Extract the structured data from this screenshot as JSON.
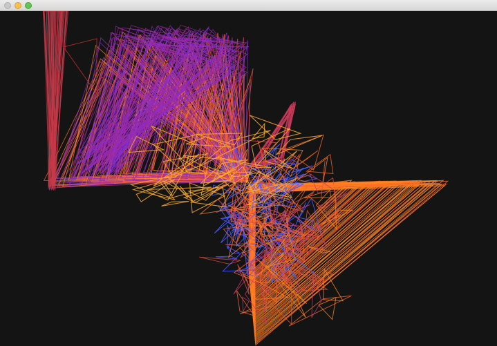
{
  "window": {
    "title": "",
    "buttons": {
      "close": "close-button",
      "minimize": "minimize-button",
      "zoom": "zoom-button"
    }
  },
  "colors": {
    "background": "#141414",
    "titlebar": "#e2e2e2",
    "palette": [
      "#ff8a1e",
      "#ff6a2a",
      "#e8503e",
      "#c63a6a",
      "#a22a9e",
      "#8a2fd0",
      "#4b5cff",
      "#ffae2a"
    ]
  },
  "artwork": {
    "description_name": "generative-triangle-strokes"
  }
}
